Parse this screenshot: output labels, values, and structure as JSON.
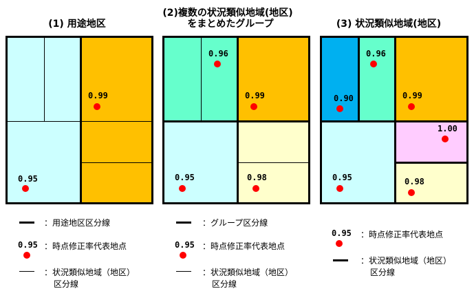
{
  "titles": {
    "panel1": "(1) 用途地区",
    "panel2_line1": "(2)複数の状況類似地域(地区)",
    "panel2_line2": "をまとめたグループ",
    "panel3": "(3) 状況類似地域(地区)"
  },
  "colors": {
    "light_cyan": "#ccffff",
    "orange": "#ffc000",
    "mint": "#66ffcc",
    "light_yellow": "#ffffcc",
    "blue": "#00b0f0",
    "pink": "#ffccff",
    "dot_red": "#ff0000"
  },
  "panel1": {
    "v_upper_right": "0.99",
    "v_lower_left": "0.95"
  },
  "panel2": {
    "v_top_mint": "0.96",
    "v_upper_right": "0.99",
    "v_lower_left": "0.95",
    "v_lower_right": "0.98"
  },
  "panel3": {
    "v_blue": "0.90",
    "v_mint": "0.96",
    "v_upper_right": "0.99",
    "v_pink": "1.00",
    "v_lower_left": "0.95",
    "v_lower_right": "0.98"
  },
  "legend1": {
    "thick": "：用途地区区分線",
    "point_value": "0.95",
    "point": "：時点修正率代表地点",
    "thin_line1": "：状況類似地域（地区）",
    "thin_line2": "区分線"
  },
  "legend2": {
    "thick": "：グループ区分線",
    "point_value": "0.95",
    "point": "：時点修正率代表地点",
    "thin_line1": "：状況類似地域（地区）",
    "thin_line2": "区分線"
  },
  "legend3": {
    "point_value": "0.95",
    "point": "：時点修正率代表地点",
    "thick_line1": "：状況類似地域（地区）",
    "thick_line2": "区分線"
  }
}
